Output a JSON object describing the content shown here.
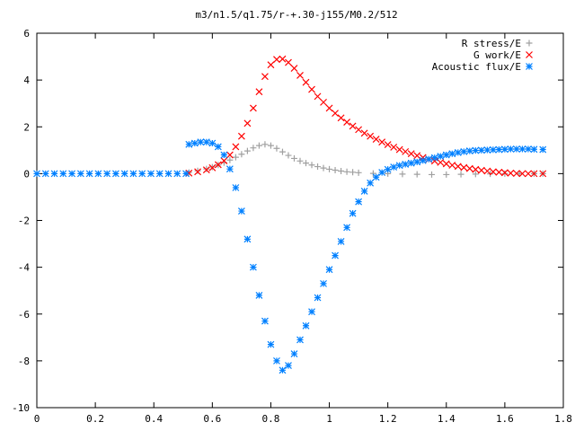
{
  "chart_data": {
    "type": "scatter",
    "title": "m3/n1.5/q1.75/r-+.30-j155/M0.2/512",
    "xlabel": "",
    "ylabel": "",
    "xlim": [
      0,
      1.8
    ],
    "ylim": [
      -10,
      6
    ],
    "x_ticks": [
      "0",
      "0.2",
      "0.4",
      "0.6",
      "0.8",
      "1",
      "1.2",
      "1.4",
      "1.6",
      "1.8"
    ],
    "y_ticks": [
      "6",
      "4",
      "2",
      "0",
      "-2",
      "-4",
      "-6",
      "-8",
      "-10"
    ],
    "grid": false,
    "legend_position": "top-right",
    "series": [
      {
        "name": "R stress/E",
        "marker": "+",
        "color": "#a0a0a0",
        "points": [
          [
            0.52,
            0.05
          ],
          [
            0.55,
            0.12
          ],
          [
            0.58,
            0.2
          ],
          [
            0.6,
            0.28
          ],
          [
            0.62,
            0.37
          ],
          [
            0.64,
            0.47
          ],
          [
            0.66,
            0.58
          ],
          [
            0.68,
            0.7
          ],
          [
            0.7,
            0.83
          ],
          [
            0.72,
            0.97
          ],
          [
            0.74,
            1.1
          ],
          [
            0.76,
            1.2
          ],
          [
            0.78,
            1.25
          ],
          [
            0.8,
            1.2
          ],
          [
            0.82,
            1.08
          ],
          [
            0.84,
            0.93
          ],
          [
            0.86,
            0.78
          ],
          [
            0.88,
            0.65
          ],
          [
            0.9,
            0.54
          ],
          [
            0.92,
            0.45
          ],
          [
            0.94,
            0.37
          ],
          [
            0.96,
            0.3
          ],
          [
            0.98,
            0.24
          ],
          [
            1.0,
            0.19
          ],
          [
            1.02,
            0.15
          ],
          [
            1.04,
            0.11
          ],
          [
            1.06,
            0.08
          ],
          [
            1.08,
            0.06
          ],
          [
            1.1,
            0.04
          ],
          [
            1.15,
            0.01
          ],
          [
            1.2,
            0.0
          ],
          [
            1.25,
            -0.02
          ],
          [
            1.3,
            -0.03
          ],
          [
            1.35,
            -0.04
          ],
          [
            1.4,
            -0.04
          ],
          [
            1.45,
            -0.03
          ],
          [
            1.5,
            -0.02
          ],
          [
            1.55,
            -0.01
          ],
          [
            1.6,
            0.0
          ],
          [
            1.65,
            0.0
          ],
          [
            1.7,
            0.0
          ],
          [
            1.73,
            0.0
          ]
        ]
      },
      {
        "name": "G work/E",
        "marker": "x",
        "color": "#ff0000",
        "points": [
          [
            0.52,
            0.02
          ],
          [
            0.55,
            0.08
          ],
          [
            0.58,
            0.16
          ],
          [
            0.6,
            0.25
          ],
          [
            0.62,
            0.38
          ],
          [
            0.64,
            0.55
          ],
          [
            0.66,
            0.8
          ],
          [
            0.68,
            1.15
          ],
          [
            0.7,
            1.6
          ],
          [
            0.72,
            2.15
          ],
          [
            0.74,
            2.8
          ],
          [
            0.76,
            3.5
          ],
          [
            0.78,
            4.15
          ],
          [
            0.8,
            4.65
          ],
          [
            0.82,
            4.88
          ],
          [
            0.84,
            4.9
          ],
          [
            0.86,
            4.75
          ],
          [
            0.88,
            4.5
          ],
          [
            0.9,
            4.2
          ],
          [
            0.92,
            3.9
          ],
          [
            0.94,
            3.6
          ],
          [
            0.96,
            3.3
          ],
          [
            0.98,
            3.05
          ],
          [
            1.0,
            2.8
          ],
          [
            1.02,
            2.58
          ],
          [
            1.04,
            2.38
          ],
          [
            1.06,
            2.2
          ],
          [
            1.08,
            2.03
          ],
          [
            1.1,
            1.88
          ],
          [
            1.12,
            1.73
          ],
          [
            1.14,
            1.6
          ],
          [
            1.16,
            1.47
          ],
          [
            1.18,
            1.35
          ],
          [
            1.2,
            1.24
          ],
          [
            1.22,
            1.13
          ],
          [
            1.24,
            1.03
          ],
          [
            1.26,
            0.94
          ],
          [
            1.28,
            0.85
          ],
          [
            1.3,
            0.77
          ],
          [
            1.32,
            0.69
          ],
          [
            1.34,
            0.61
          ],
          [
            1.36,
            0.54
          ],
          [
            1.38,
            0.48
          ],
          [
            1.4,
            0.42
          ],
          [
            1.42,
            0.36
          ],
          [
            1.44,
            0.31
          ],
          [
            1.46,
            0.26
          ],
          [
            1.48,
            0.22
          ],
          [
            1.5,
            0.18
          ],
          [
            1.52,
            0.14
          ],
          [
            1.54,
            0.11
          ],
          [
            1.56,
            0.08
          ],
          [
            1.58,
            0.06
          ],
          [
            1.6,
            0.04
          ],
          [
            1.62,
            0.02
          ],
          [
            1.64,
            0.01
          ],
          [
            1.66,
            0.0
          ],
          [
            1.68,
            0.0
          ],
          [
            1.7,
            0.0
          ],
          [
            1.73,
            0.0
          ]
        ]
      },
      {
        "name": "Acoustic flux/E",
        "marker": "*",
        "color": "#0080ff",
        "points": [
          [
            0.0,
            0.0
          ],
          [
            0.03,
            0.0
          ],
          [
            0.06,
            0.0
          ],
          [
            0.09,
            0.0
          ],
          [
            0.12,
            0.0
          ],
          [
            0.15,
            0.0
          ],
          [
            0.18,
            0.0
          ],
          [
            0.21,
            0.0
          ],
          [
            0.24,
            0.0
          ],
          [
            0.27,
            0.0
          ],
          [
            0.3,
            0.0
          ],
          [
            0.33,
            0.0
          ],
          [
            0.36,
            0.0
          ],
          [
            0.39,
            0.0
          ],
          [
            0.42,
            0.0
          ],
          [
            0.45,
            0.0
          ],
          [
            0.48,
            0.0
          ],
          [
            0.51,
            0.0
          ],
          [
            0.52,
            1.25
          ],
          [
            0.54,
            1.3
          ],
          [
            0.56,
            1.35
          ],
          [
            0.58,
            1.35
          ],
          [
            0.6,
            1.3
          ],
          [
            0.62,
            1.15
          ],
          [
            0.64,
            0.8
          ],
          [
            0.66,
            0.2
          ],
          [
            0.68,
            -0.6
          ],
          [
            0.7,
            -1.6
          ],
          [
            0.72,
            -2.8
          ],
          [
            0.74,
            -4.0
          ],
          [
            0.76,
            -5.2
          ],
          [
            0.78,
            -6.3
          ],
          [
            0.8,
            -7.3
          ],
          [
            0.82,
            -8.0
          ],
          [
            0.84,
            -8.4
          ],
          [
            0.86,
            -8.2
          ],
          [
            0.88,
            -7.7
          ],
          [
            0.9,
            -7.1
          ],
          [
            0.92,
            -6.5
          ],
          [
            0.94,
            -5.9
          ],
          [
            0.96,
            -5.3
          ],
          [
            0.98,
            -4.7
          ],
          [
            1.0,
            -4.1
          ],
          [
            1.02,
            -3.5
          ],
          [
            1.04,
            -2.9
          ],
          [
            1.06,
            -2.3
          ],
          [
            1.08,
            -1.7
          ],
          [
            1.1,
            -1.2
          ],
          [
            1.12,
            -0.75
          ],
          [
            1.14,
            -0.4
          ],
          [
            1.16,
            -0.15
          ],
          [
            1.18,
            0.05
          ],
          [
            1.2,
            0.18
          ],
          [
            1.22,
            0.28
          ],
          [
            1.24,
            0.35
          ],
          [
            1.26,
            0.4
          ],
          [
            1.28,
            0.45
          ],
          [
            1.3,
            0.5
          ],
          [
            1.32,
            0.56
          ],
          [
            1.34,
            0.62
          ],
          [
            1.36,
            0.68
          ],
          [
            1.38,
            0.74
          ],
          [
            1.4,
            0.8
          ],
          [
            1.42,
            0.85
          ],
          [
            1.44,
            0.9
          ],
          [
            1.46,
            0.94
          ],
          [
            1.48,
            0.97
          ],
          [
            1.5,
            0.99
          ],
          [
            1.52,
            1.0
          ],
          [
            1.54,
            1.01
          ],
          [
            1.56,
            1.02
          ],
          [
            1.58,
            1.03
          ],
          [
            1.6,
            1.04
          ],
          [
            1.62,
            1.05
          ],
          [
            1.64,
            1.05
          ],
          [
            1.66,
            1.05
          ],
          [
            1.68,
            1.05
          ],
          [
            1.7,
            1.04
          ],
          [
            1.73,
            1.03
          ]
        ]
      }
    ]
  }
}
